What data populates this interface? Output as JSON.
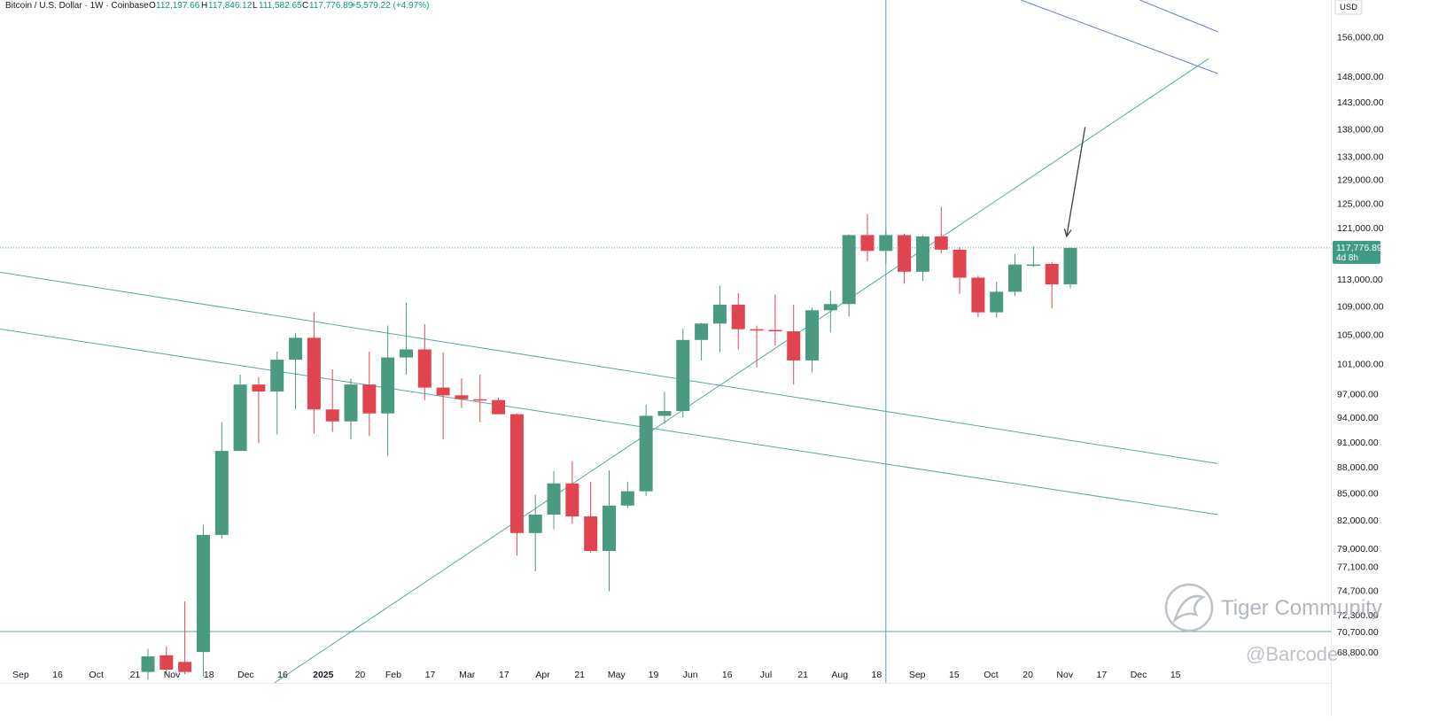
{
  "header": {
    "symbol": "Bitcoin / U.S. Dollar · 1W · Coinbase",
    "open_label": "O",
    "open": "112,197.66",
    "high_label": "H",
    "high": "117,846.12",
    "low_label": "L",
    "low": "111,582.65",
    "close_label": "C",
    "close": "117,776.89",
    "change": "+5,579.22 (+4.97%)"
  },
  "currency_label": "USD",
  "price_badge": {
    "price": "117,776.89",
    "countdown": "4d 8h"
  },
  "watermark": {
    "brand": "Tiger Community",
    "handle": "@Barcode"
  },
  "colors": {
    "up": "#4a9a82",
    "down": "#e0454f",
    "line": "#5aa6a0",
    "crosshair": "#5b9bd5",
    "channel_top": "#6b7fc9"
  },
  "chart_data": {
    "type": "candlestick",
    "scale": "log",
    "grid": false,
    "y_ticks": [
      {
        "v": 156000,
        "label": "156,000.00"
      },
      {
        "v": 148000,
        "label": "148,000.00"
      },
      {
        "v": 143000,
        "label": "143,000.00"
      },
      {
        "v": 138000,
        "label": "138,000.00"
      },
      {
        "v": 133000,
        "label": "133,000.00"
      },
      {
        "v": 129000,
        "label": "129,000.00"
      },
      {
        "v": 125000,
        "label": "125,000.00"
      },
      {
        "v": 121000,
        "label": "121,000.00"
      },
      {
        "v": 113000,
        "label": "113,000.00"
      },
      {
        "v": 109000,
        "label": "109,000.00"
      },
      {
        "v": 105000,
        "label": "105,000.00"
      },
      {
        "v": 101000,
        "label": "101,000.00"
      },
      {
        "v": 97000,
        "label": "97,000.00"
      },
      {
        "v": 94000,
        "label": "94,000.00"
      },
      {
        "v": 91000,
        "label": "91,000.00"
      },
      {
        "v": 88000,
        "label": "88,000.00"
      },
      {
        "v": 85000,
        "label": "85,000.00"
      },
      {
        "v": 82000,
        "label": "82,000.00"
      },
      {
        "v": 79000,
        "label": "79,000.00"
      },
      {
        "v": 77100,
        "label": "77,100.00"
      },
      {
        "v": 74700,
        "label": "74,700.00"
      },
      {
        "v": 72300,
        "label": "72,300.00"
      },
      {
        "v": 70700,
        "label": "70,700.00"
      },
      {
        "v": 68800,
        "label": "68,800.00"
      }
    ],
    "x_ticks": [
      {
        "label": "Sep",
        "week": -6.9
      },
      {
        "label": "16",
        "week": -4.9
      },
      {
        "label": "Oct",
        "week": -2.8
      },
      {
        "label": "21",
        "week": -0.7
      },
      {
        "label": "Nov",
        "week": 1.3
      },
      {
        "label": "18",
        "week": 3.3
      },
      {
        "label": "Dec",
        "week": 5.3
      },
      {
        "label": "16",
        "week": 7.3
      },
      {
        "label": "2025",
        "week": 9.5,
        "bold": true
      },
      {
        "label": "20",
        "week": 11.5
      },
      {
        "label": "Feb",
        "week": 13.3
      },
      {
        "label": "17",
        "week": 15.3
      },
      {
        "label": "Mar",
        "week": 17.3
      },
      {
        "label": "17",
        "week": 19.3
      },
      {
        "label": "Apr",
        "week": 21.4
      },
      {
        "label": "21",
        "week": 23.4
      },
      {
        "label": "May",
        "week": 25.4
      },
      {
        "label": "19",
        "week": 27.4
      },
      {
        "label": "Jun",
        "week": 29.4
      },
      {
        "label": "16",
        "week": 31.4
      },
      {
        "label": "Jul",
        "week": 33.5
      },
      {
        "label": "21",
        "week": 35.5
      },
      {
        "label": "Aug",
        "week": 37.5
      },
      {
        "label": "18",
        "week": 39.5
      },
      {
        "label": "Sep",
        "week": 41.7
      },
      {
        "label": "15",
        "week": 43.7
      },
      {
        "label": "Oct",
        "week": 45.7
      },
      {
        "label": "20",
        "week": 47.7
      },
      {
        "label": "Nov",
        "week": 49.7
      },
      {
        "label": "17",
        "week": 51.7
      },
      {
        "label": "Dec",
        "week": 53.7
      },
      {
        "label": "15",
        "week": 55.7
      }
    ],
    "candles": [
      {
        "o": 67000,
        "h": 69100,
        "l": 66300,
        "c": 68400
      },
      {
        "o": 68500,
        "h": 69300,
        "l": 66700,
        "c": 67200
      },
      {
        "o": 67900,
        "h": 73600,
        "l": 66800,
        "c": 67000
      },
      {
        "o": 68800,
        "h": 81500,
        "l": 66600,
        "c": 80400
      },
      {
        "o": 80400,
        "h": 93400,
        "l": 80000,
        "c": 89900
      },
      {
        "o": 89900,
        "h": 99500,
        "l": 89900,
        "c": 98200
      },
      {
        "o": 98200,
        "h": 99200,
        "l": 90800,
        "c": 97300
      },
      {
        "o": 97300,
        "h": 102600,
        "l": 91900,
        "c": 101500
      },
      {
        "o": 101500,
        "h": 105200,
        "l": 95000,
        "c": 104500
      },
      {
        "o": 104500,
        "h": 108100,
        "l": 92000,
        "c": 95000
      },
      {
        "o": 95000,
        "h": 100200,
        "l": 92200,
        "c": 93500
      },
      {
        "o": 93500,
        "h": 99000,
        "l": 91300,
        "c": 98200
      },
      {
        "o": 98200,
        "h": 102600,
        "l": 91700,
        "c": 94500
      },
      {
        "o": 94500,
        "h": 106200,
        "l": 89300,
        "c": 101800
      },
      {
        "o": 101800,
        "h": 109500,
        "l": 99500,
        "c": 102900
      },
      {
        "o": 102900,
        "h": 106400,
        "l": 96200,
        "c": 97800
      },
      {
        "o": 97800,
        "h": 102500,
        "l": 91300,
        "c": 96800
      },
      {
        "o": 96800,
        "h": 99000,
        "l": 95200,
        "c": 96300
      },
      {
        "o": 96300,
        "h": 99500,
        "l": 93400,
        "c": 96200
      },
      {
        "o": 96200,
        "h": 96500,
        "l": 94700,
        "c": 94400
      },
      {
        "o": 94400,
        "h": 94500,
        "l": 78200,
        "c": 80600
      },
      {
        "o": 80600,
        "h": 84800,
        "l": 76600,
        "c": 82600
      },
      {
        "o": 82600,
        "h": 87500,
        "l": 81000,
        "c": 86100
      },
      {
        "o": 86100,
        "h": 88700,
        "l": 81600,
        "c": 82400
      },
      {
        "o": 82400,
        "h": 86300,
        "l": 78500,
        "c": 78700
      },
      {
        "o": 78700,
        "h": 87600,
        "l": 74600,
        "c": 83600
      },
      {
        "o": 83600,
        "h": 86300,
        "l": 83300,
        "c": 85200
      },
      {
        "o": 85200,
        "h": 95600,
        "l": 84700,
        "c": 94200
      },
      {
        "o": 94200,
        "h": 97300,
        "l": 93200,
        "c": 94800
      },
      {
        "o": 94800,
        "h": 105800,
        "l": 94000,
        "c": 104200
      },
      {
        "o": 104200,
        "h": 106600,
        "l": 101400,
        "c": 106500
      },
      {
        "o": 106500,
        "h": 112000,
        "l": 102500,
        "c": 109200
      },
      {
        "o": 109200,
        "h": 110900,
        "l": 102900,
        "c": 105700
      },
      {
        "o": 105700,
        "h": 106200,
        "l": 100500,
        "c": 105600
      },
      {
        "o": 105600,
        "h": 110700,
        "l": 103400,
        "c": 105400
      },
      {
        "o": 105400,
        "h": 109200,
        "l": 98200,
        "c": 101400
      },
      {
        "o": 101400,
        "h": 108800,
        "l": 99800,
        "c": 108400
      },
      {
        "o": 108400,
        "h": 111200,
        "l": 105300,
        "c": 109300
      },
      {
        "o": 109300,
        "h": 119900,
        "l": 107500,
        "c": 119800
      },
      {
        "o": 119800,
        "h": 123200,
        "l": 115700,
        "c": 117300
      },
      {
        "o": 117300,
        "h": 120800,
        "l": 115300,
        "c": 119800
      },
      {
        "o": 119800,
        "h": 120000,
        "l": 112300,
        "c": 114100
      },
      {
        "o": 114100,
        "h": 119800,
        "l": 112700,
        "c": 119600
      },
      {
        "o": 119600,
        "h": 124400,
        "l": 116900,
        "c": 117500
      },
      {
        "o": 117500,
        "h": 117900,
        "l": 110800,
        "c": 113200
      },
      {
        "o": 113200,
        "h": 113500,
        "l": 107400,
        "c": 108100
      },
      {
        "o": 108100,
        "h": 112600,
        "l": 107300,
        "c": 111100
      },
      {
        "o": 111100,
        "h": 116800,
        "l": 110500,
        "c": 115200
      },
      {
        "o": 115200,
        "h": 118100,
        "l": 114800,
        "c": 115200
      },
      {
        "o": 115300,
        "h": 115600,
        "l": 108700,
        "c": 112200
      },
      {
        "o": 112198,
        "h": 117846,
        "l": 111583,
        "c": 117777
      }
    ],
    "current_price": 117776.89,
    "horizontal_levels": [
      117776.89,
      70700
    ],
    "vertical_line_week": 40.0,
    "trendlines": [
      {
        "name": "rising-support",
        "color": "line",
        "from": {
          "week": 0.3,
          "price": 59300
        },
        "to": {
          "week": 57.5,
          "price": 151500
        }
      },
      {
        "name": "descending-channel-upper",
        "color": "line",
        "from": {
          "week": -8.2,
          "price": 114100
        },
        "to": {
          "week": 58.0,
          "price": 88400
        }
      },
      {
        "name": "descending-channel-lower",
        "color": "line",
        "from": {
          "week": -8.2,
          "price": 105800
        },
        "to": {
          "week": 58.0,
          "price": 82600
        }
      },
      {
        "name": "upper-channel-a",
        "color": "channel_top",
        "from": {
          "week": 32.3,
          "price": 188000
        },
        "to": {
          "week": 58.0,
          "price": 148500
        }
      },
      {
        "name": "upper-channel-b",
        "color": "channel_top",
        "from": {
          "week": 46.0,
          "price": 177000
        },
        "to": {
          "week": 58.0,
          "price": 157000
        }
      }
    ],
    "arrow": {
      "from": {
        "week": 50.8,
        "price": 138300
      },
      "to": {
        "week": 49.8,
        "price": 119600
      }
    }
  }
}
